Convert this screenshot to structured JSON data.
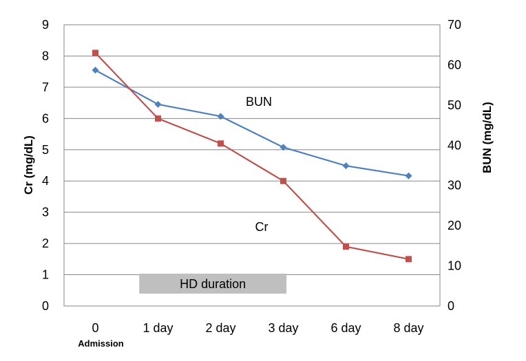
{
  "chart_data": {
    "type": "line",
    "categories": [
      "0",
      "1 day",
      "2 day",
      "3 day",
      "6 day",
      "8 day"
    ],
    "category_sublabels": [
      "Admission",
      "",
      "",
      "",
      "",
      ""
    ],
    "ylabel_left": "Cr (mg/dL)",
    "ylabel_right": "BUN (mg/dL)",
    "ylim_left": [
      0,
      9
    ],
    "ylim_right": [
      0,
      70
    ],
    "yticks_left": [
      "0",
      "1",
      "2",
      "3",
      "4",
      "5",
      "6",
      "7",
      "8",
      "9"
    ],
    "yticks_right": [
      "0",
      "10",
      "20",
      "30",
      "40",
      "50",
      "60",
      "70"
    ],
    "grid": true,
    "series": [
      {
        "name": "BUN",
        "axis": "right",
        "color": "#4f81bd",
        "marker": "diamond",
        "values": [
          58.7,
          50.2,
          47.2,
          39.5,
          34.9,
          32.4
        ]
      },
      {
        "name": "Cr",
        "axis": "left",
        "color": "#c0504d",
        "marker": "square",
        "values": [
          8.1,
          6.0,
          5.2,
          4.0,
          1.9,
          1.5
        ]
      }
    ],
    "annotation": {
      "text": "HD duration",
      "from_category": "0",
      "to_category": "3 day",
      "color": "#bfbfbf"
    }
  }
}
